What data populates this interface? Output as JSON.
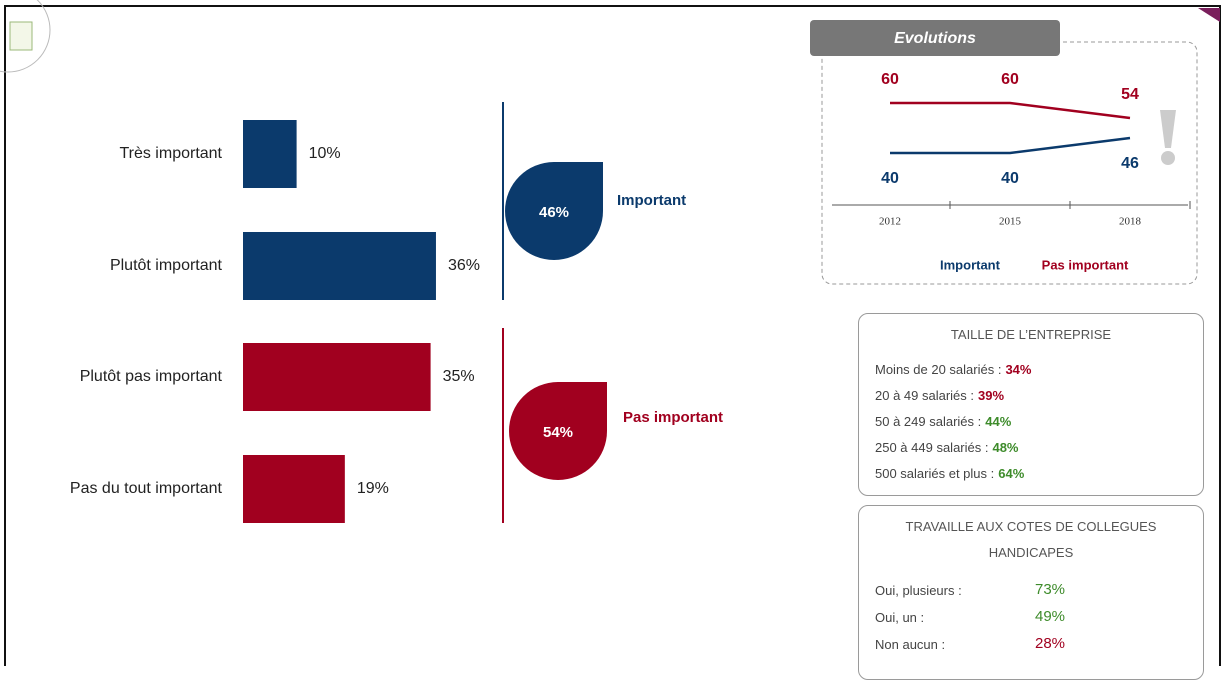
{
  "chart_data": [
    {
      "type": "bar",
      "categories": [
        "Très important",
        "Plutôt important",
        "Plutôt pas important",
        "Pas du tout important"
      ],
      "values": [
        10,
        36,
        35,
        19
      ],
      "value_labels": [
        "10%",
        "36%",
        "35%",
        "19%"
      ],
      "colors": [
        "#0b3a6c",
        "#0b3a6c",
        "#a1001f",
        "#a1001f"
      ]
    },
    {
      "type": "summary",
      "categories": [
        "Important",
        "Pas important"
      ],
      "values": [
        46,
        54
      ],
      "value_labels": [
        "46%",
        "54%"
      ],
      "colors": [
        "#0b3a6c",
        "#a1001f"
      ]
    },
    {
      "type": "line",
      "title": "Evolutions",
      "categories": [
        "2012",
        "2015",
        "2018"
      ],
      "series": [
        {
          "name": "Important",
          "color": "#0b3a6c",
          "values": [
            40,
            40,
            46
          ]
        },
        {
          "name": "Pas important",
          "color": "#a1001f",
          "values": [
            60,
            60,
            54
          ]
        }
      ]
    },
    {
      "type": "list",
      "title": "TAILLE DE L’ENTREPRISE",
      "categories": [
        "Moins de 20 salariés :",
        "20 à 49 salariés :",
        "50 à 249 salariés :",
        "250 à 449 salariés :",
        "500 salariés et plus :"
      ],
      "values": [
        34,
        39,
        44,
        48,
        64
      ],
      "value_labels": [
        "34%",
        "39%",
        "44%",
        "48%",
        "64%"
      ],
      "colors": [
        "#a1001f",
        "#a1001f",
        "#3d8b2a",
        "#3d8b2a",
        "#3d8b2a"
      ]
    },
    {
      "type": "list",
      "title": "TRAVAILLE AUX COTES DE COLLEGUES HANDICAPES",
      "categories": [
        "Oui, plusieurs :",
        "Oui, un :",
        "Non aucun :"
      ],
      "values": [
        73,
        49,
        28
      ],
      "value_labels": [
        "73%",
        "49%",
        "28%"
      ],
      "colors": [
        "#3d8b2a",
        "#3d8b2a",
        "#a1001f"
      ]
    }
  ]
}
